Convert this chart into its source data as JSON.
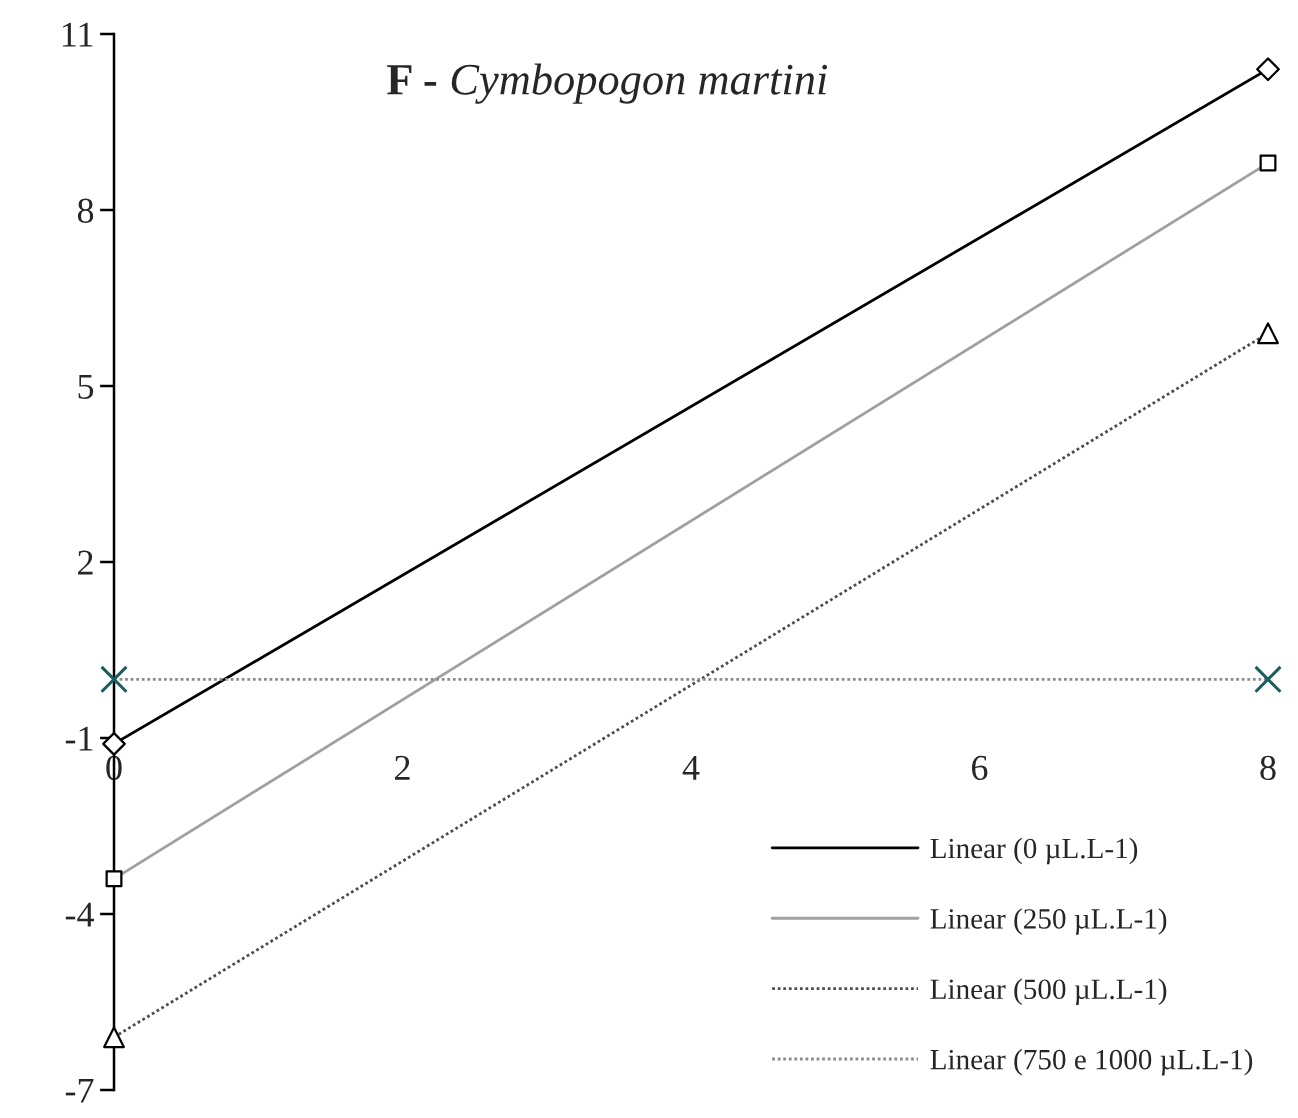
{
  "chart_data": {
    "type": "line",
    "title": "F - Cymbopogon martini",
    "x": [
      0,
      8
    ],
    "series": [
      {
        "name": "Linear (0 µL.L-1)",
        "color": "#000000",
        "colors": [
          "#000000",
          "#000000"
        ],
        "marker": "diamond",
        "line_style": "solid",
        "values": [
          -1.1,
          10.4
        ]
      },
      {
        "name": "Linear (250 µL.L-1)",
        "color": "#a0a0a0",
        "colors": [
          "#000000",
          "#000000"
        ],
        "marker": "square",
        "line_style": "solid",
        "values": [
          -3.4,
          8.8
        ]
      },
      {
        "name": "Linear (500 µL.L-1)",
        "color": "#4d4d4d",
        "colors": [
          "#000000",
          "#000000"
        ],
        "marker": "triangle",
        "line_style": "dotted",
        "values": [
          -6.1,
          5.9
        ]
      },
      {
        "name": "Linear (750 e 1000 µL.L-1)",
        "color": "#8c8c8c",
        "colors": [
          "#1b5e5e",
          "#1b5e5e"
        ],
        "marker": "cross",
        "line_style": "dotted",
        "values": [
          0,
          0
        ]
      }
    ],
    "xlim": [
      0,
      8
    ],
    "xticks": [
      0,
      2,
      4,
      6,
      8
    ],
    "ylim": [
      -7,
      11
    ],
    "yticks": [
      -7,
      -4,
      -1,
      2,
      5,
      8,
      11
    ],
    "legend": "bottom right",
    "grid": false
  }
}
